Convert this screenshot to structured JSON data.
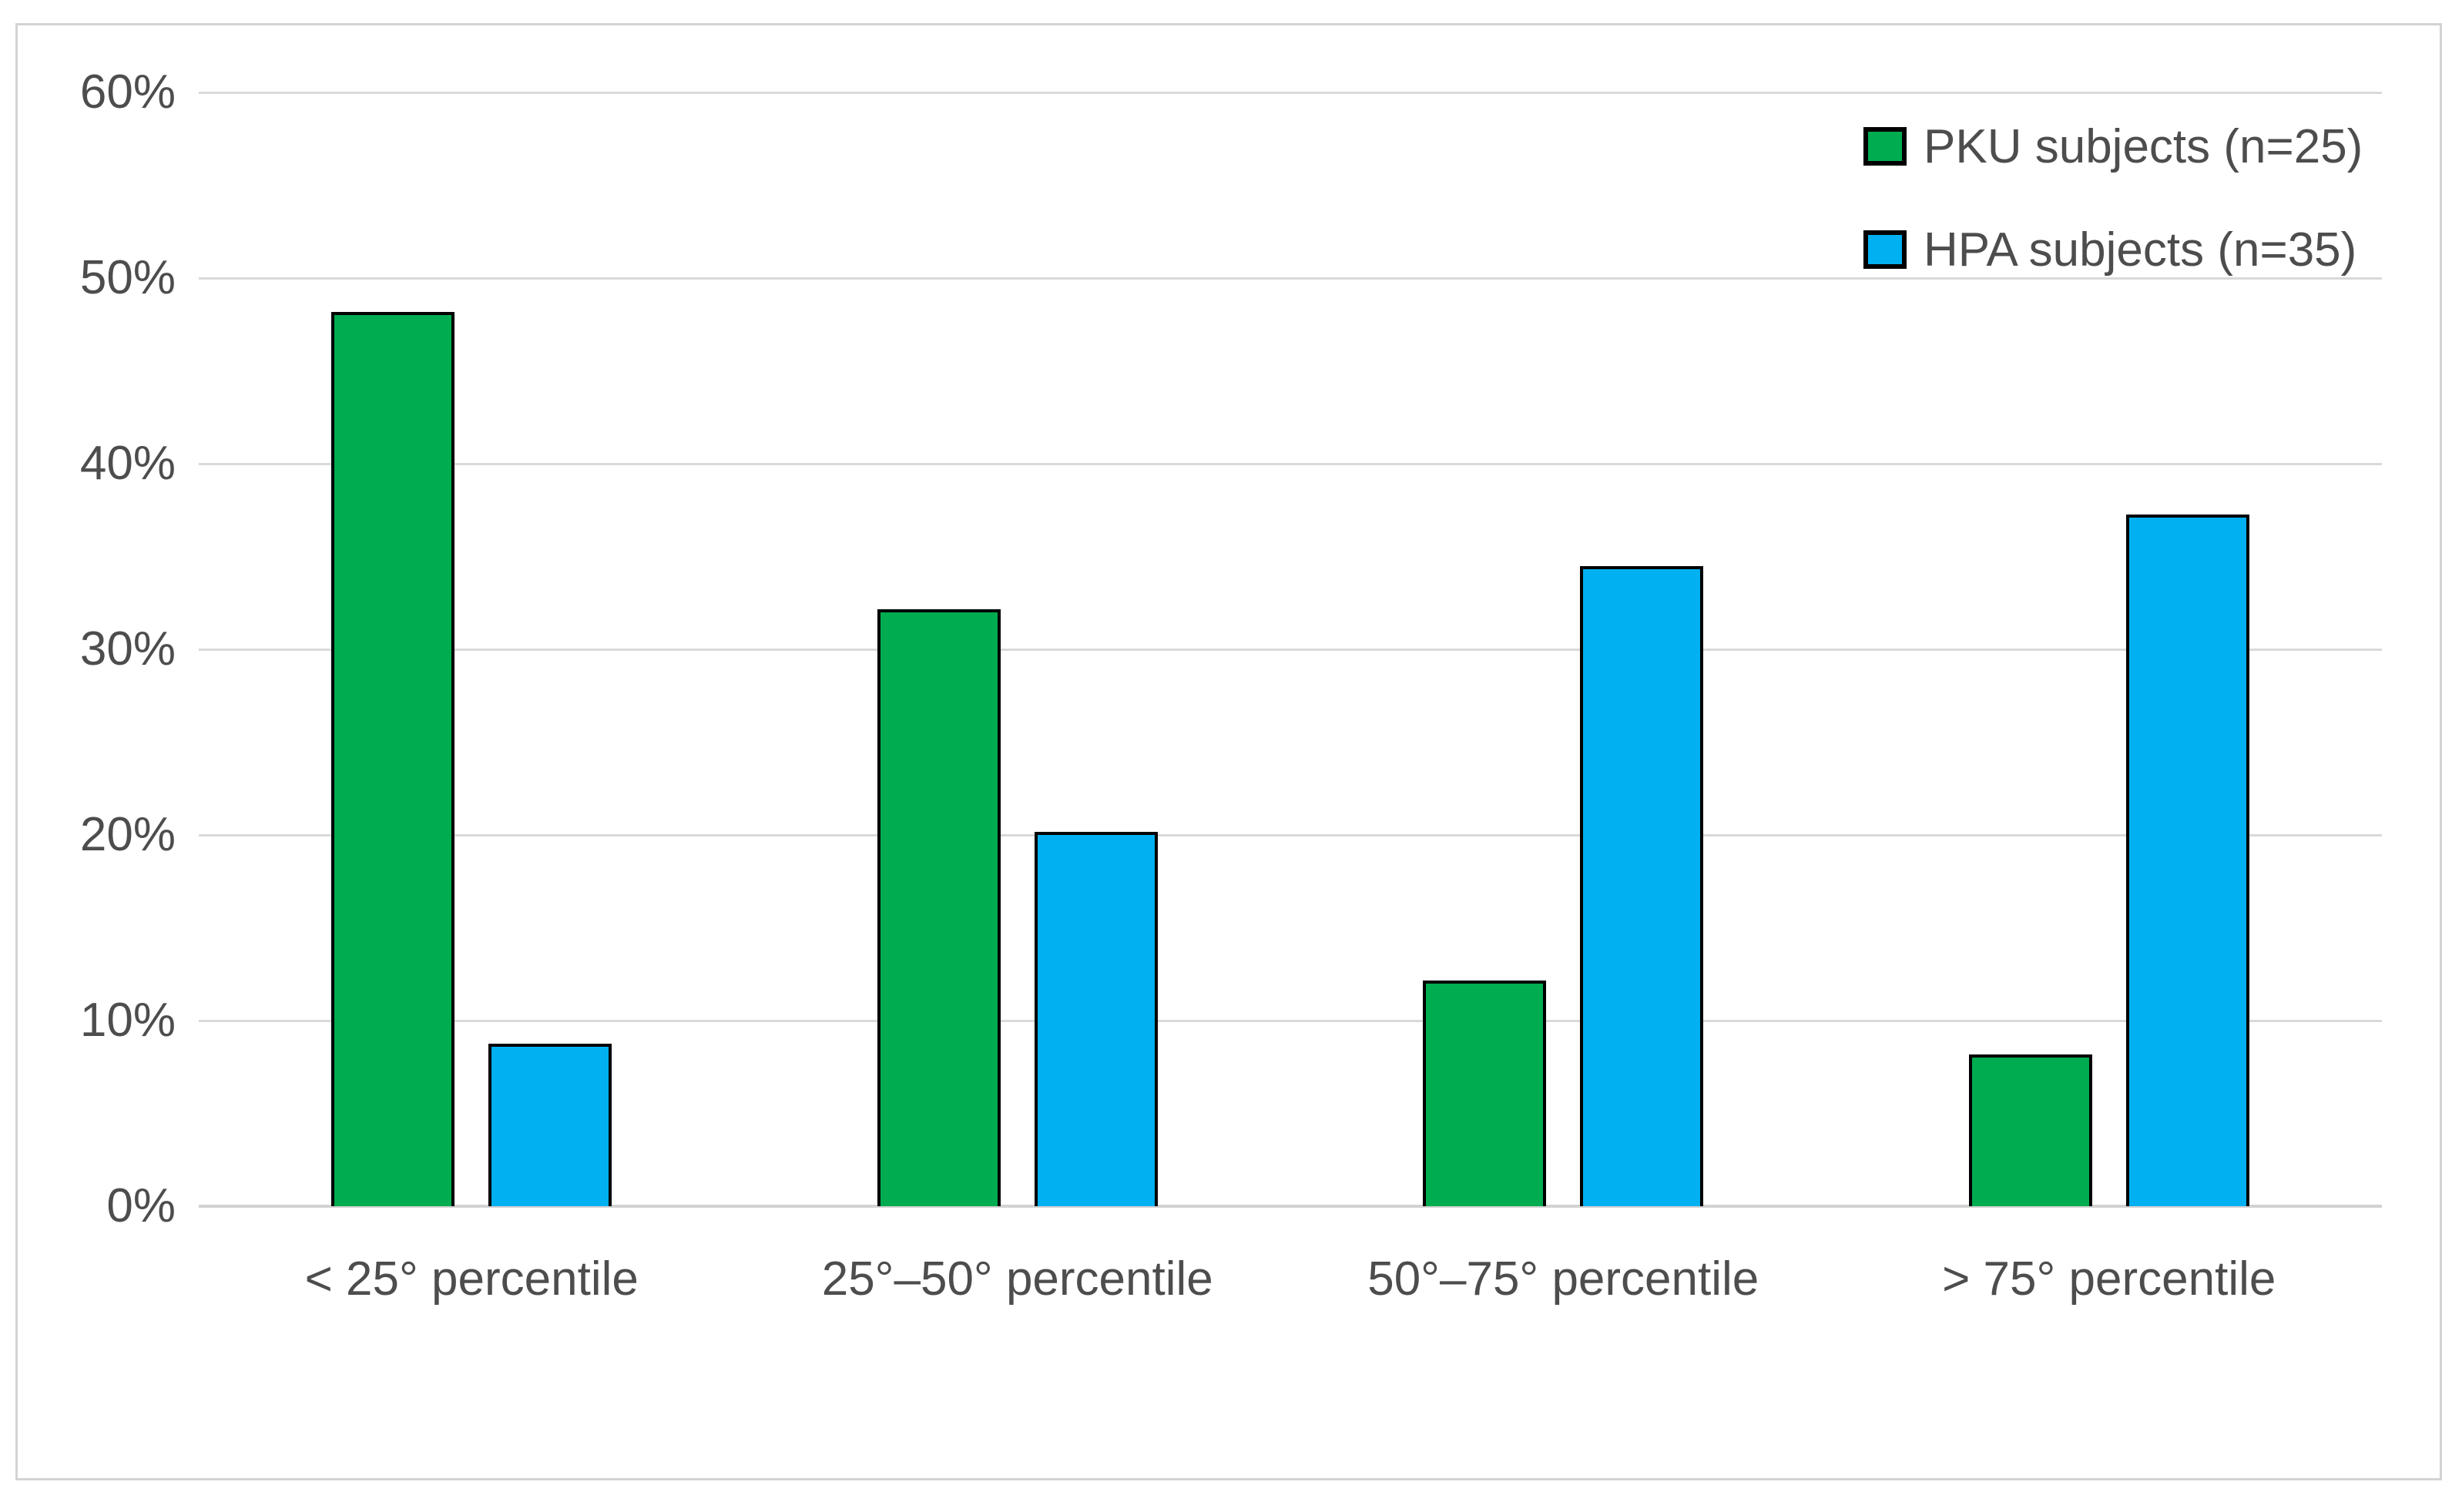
{
  "chart_data": {
    "type": "bar",
    "categories": [
      "< 25° percentile",
      "25°–50° percentile",
      "50°–75° percentile",
      "> 75° percentile"
    ],
    "series": [
      {
        "key": "pku",
        "name": "PKU subjects (n=25)",
        "color": "#00AC50",
        "values": [
          48,
          32,
          12,
          8
        ]
      },
      {
        "key": "hpa",
        "name": "HPA subjects (n=35)",
        "color": "#00B0F0",
        "values": [
          8.6,
          20,
          34.3,
          37.1
        ]
      }
    ],
    "y_axis": {
      "min": 0,
      "max": 60,
      "tick_step": 10,
      "tick_suffix": "%",
      "ticks": [
        0,
        10,
        20,
        30,
        40,
        50,
        60
      ]
    },
    "grid": true,
    "legend_position": "top-right",
    "colors": {
      "bar_border": "#000000",
      "gridline": "#D9D9D9",
      "text": "#4D4D4D",
      "frame_border": "#D3D3D3",
      "background": "#FFFFFF"
    }
  }
}
